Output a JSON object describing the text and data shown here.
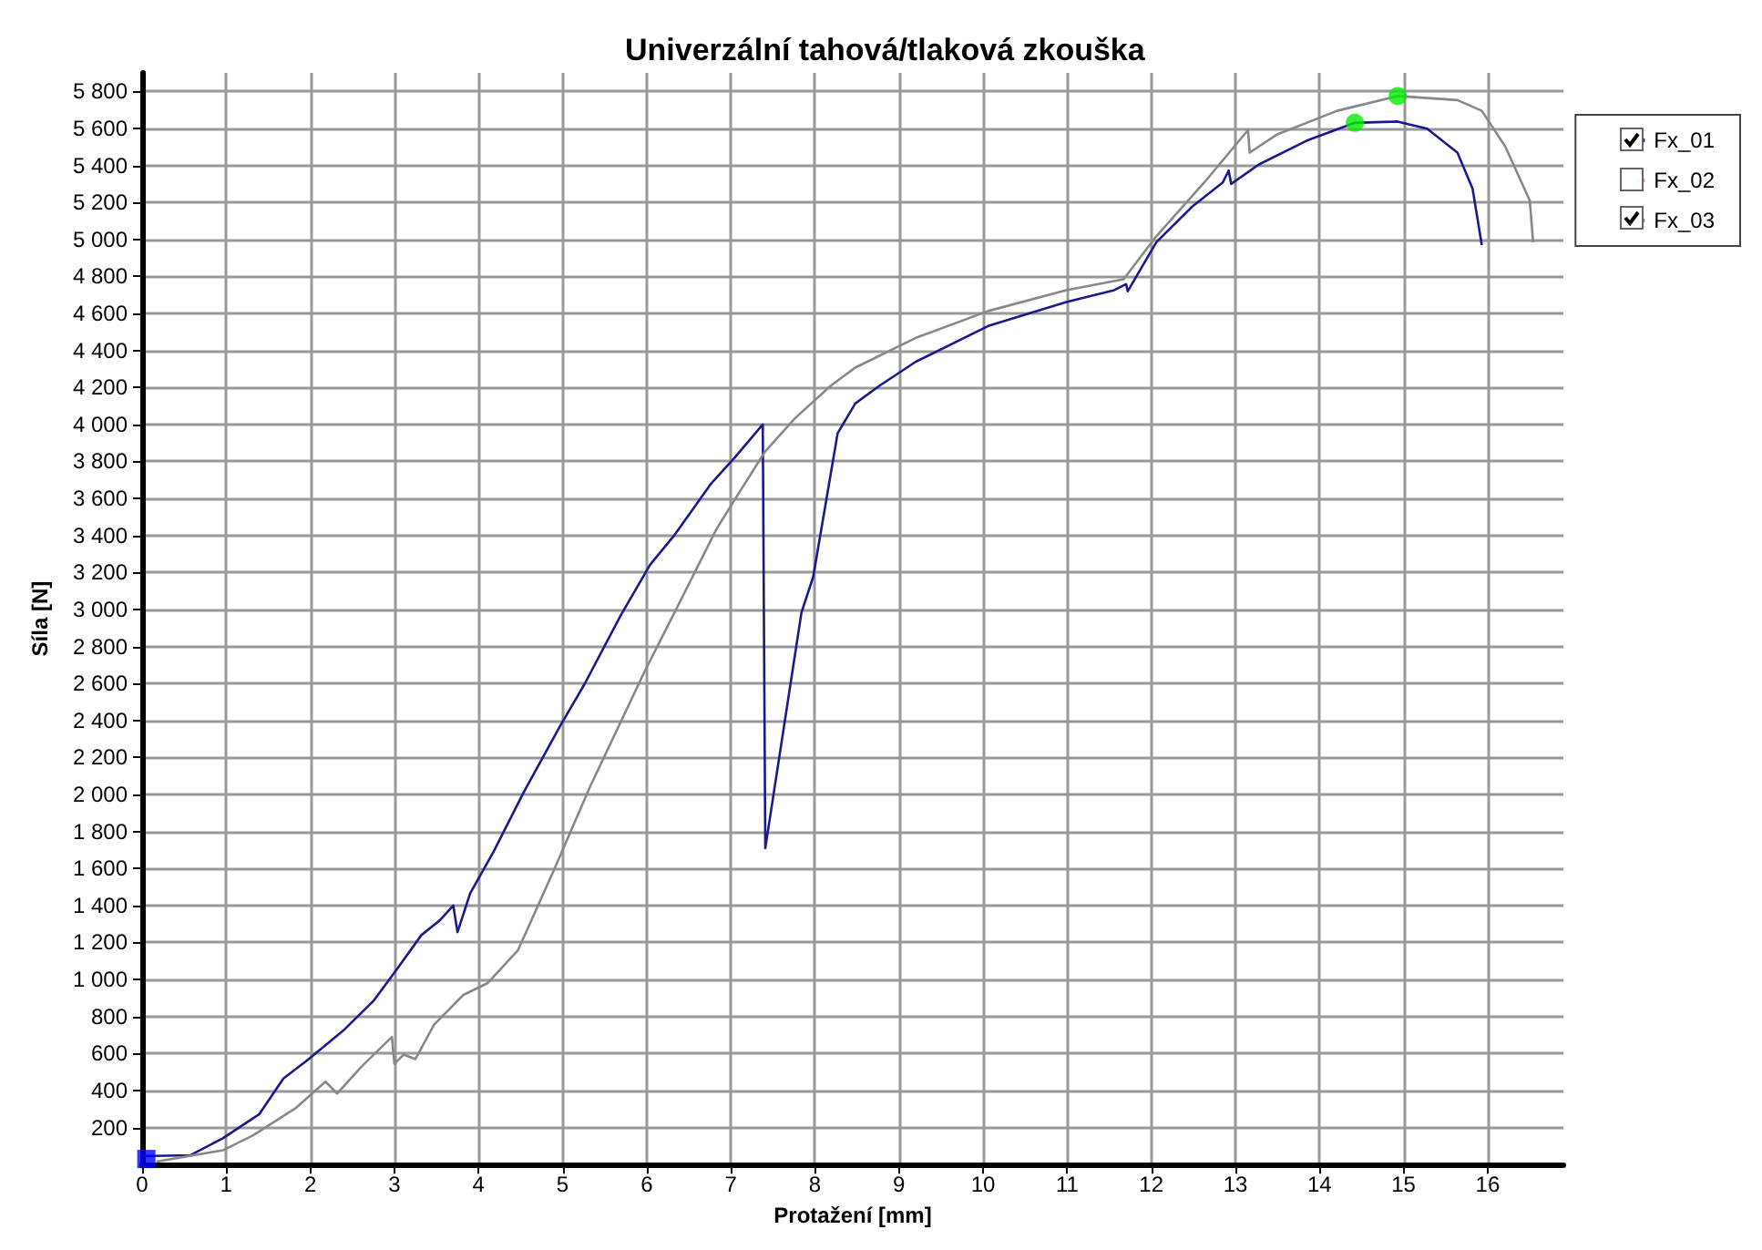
{
  "chart_data": {
    "type": "line",
    "title": "Univerzální tahová/tlaková zkouška",
    "xlabel": "Protažení [mm]",
    "ylabel": "Síla [N]",
    "xlim": [
      0,
      16.9
    ],
    "xticks": [
      0,
      1,
      2,
      3,
      4,
      5,
      6,
      7,
      8,
      9,
      10,
      11,
      12,
      13,
      14,
      15,
      16
    ],
    "ylim": [
      0,
      5900
    ],
    "yticks": [
      {
        "value": 200,
        "label": "200"
      },
      {
        "value": 400,
        "label": "400"
      },
      {
        "value": 600,
        "label": "600"
      },
      {
        "value": 800,
        "label": "800"
      },
      {
        "value": 1000,
        "label": "1 000"
      },
      {
        "value": 1200,
        "label": "1 200"
      },
      {
        "value": 1400,
        "label": "1 400"
      },
      {
        "value": 1600,
        "label": "1 600"
      },
      {
        "value": 1800,
        "label": "1 800"
      },
      {
        "value": 2000,
        "label": "2 000"
      },
      {
        "value": 2200,
        "label": "2 200"
      },
      {
        "value": 2400,
        "label": "2 400"
      },
      {
        "value": 2600,
        "label": "2 600"
      },
      {
        "value": 2800,
        "label": "2 800"
      },
      {
        "value": 3000,
        "label": "3 000"
      },
      {
        "value": 3200,
        "label": "3 200"
      },
      {
        "value": 3400,
        "label": "3 400"
      },
      {
        "value": 3600,
        "label": "3 600"
      },
      {
        "value": 3800,
        "label": "3 800"
      },
      {
        "value": 4000,
        "label": "4 000"
      },
      {
        "value": 4200,
        "label": "4 200"
      },
      {
        "value": 4400,
        "label": "4 400"
      },
      {
        "value": 4600,
        "label": "4 600"
      },
      {
        "value": 4800,
        "label": "4 800"
      },
      {
        "value": 5000,
        "label": "5 000"
      },
      {
        "value": 5200,
        "label": "5 200"
      },
      {
        "value": 5400,
        "label": "5 400"
      },
      {
        "value": 5600,
        "label": "5 600"
      },
      {
        "value": 5800,
        "label": "5 800"
      }
    ],
    "grid": true,
    "legend": "top right",
    "marker": "none",
    "line_style": "solid",
    "series": [
      {
        "name": "Fx_01",
        "color": "#1a1a8c",
        "x": [
          0,
          0.57,
          0.96,
          1.39,
          1.68,
          1.96,
          2.39,
          2.75,
          3.04,
          3.32,
          3.54,
          3.7,
          3.75,
          3.9,
          4.18,
          4.54,
          4.97,
          5.26,
          5.69,
          6.04,
          6.33,
          6.76,
          7.05,
          7.38,
          7.41,
          7.84,
          7.98,
          8.27,
          8.48,
          8.77,
          9.2,
          10.06,
          10.99,
          11.56,
          11.7,
          11.72,
          12.06,
          12.49,
          12.85,
          12.92,
          12.95,
          13.28,
          13.85,
          14.42,
          14.93,
          15.28,
          15.64,
          15.82,
          15.93
        ],
        "values": [
          45,
          50,
          142,
          271,
          465,
          562,
          723,
          884,
          1062,
          1240,
          1320,
          1400,
          1256,
          1465,
          1692,
          2014,
          2370,
          2596,
          2967,
          3242,
          3402,
          3677,
          3823,
          4000,
          1710,
          2983,
          3177,
          3952,
          4113,
          4210,
          4339,
          4532,
          4662,
          4726,
          4758,
          4720,
          4985,
          5179,
          5308,
          5372,
          5300,
          5405,
          5534,
          5630,
          5637,
          5598,
          5469,
          5275,
          4969
        ]
      },
      {
        "name": "Fx_02",
        "color": "#ff8899"
      },
      {
        "name": "Fx_03",
        "color": "#888888",
        "x": [
          0.17,
          0.96,
          1.32,
          1.82,
          2.18,
          2.32,
          2.61,
          2.97,
          3.0,
          3.11,
          3.25,
          3.47,
          3.82,
          4.11,
          4.47,
          4.9,
          5.33,
          5.97,
          6.33,
          6.83,
          7.05,
          7.41,
          7.76,
          8.19,
          8.48,
          9.2,
          10.06,
          10.99,
          11.67,
          12.06,
          12.63,
          13.15,
          13.17,
          13.49,
          14.21,
          14.93,
          15.64,
          15.93,
          16.21,
          16.5,
          16.54
        ],
        "values": [
          16,
          77,
          158,
          303,
          448,
          384,
          530,
          690,
          545,
          594,
          570,
          755,
          917,
          981,
          1159,
          1595,
          2046,
          2660,
          2983,
          3435,
          3596,
          3855,
          4032,
          4210,
          4307,
          4468,
          4613,
          4726,
          4785,
          5017,
          5308,
          5591,
          5469,
          5566,
          5695,
          5775,
          5753,
          5695,
          5501,
          5211,
          4985
        ]
      },
      {
        "type": "scatter",
        "color": "#00ee00",
        "marker": "circle",
        "x": [
          14.42,
          14.93
        ],
        "values": [
          5630,
          5775
        ]
      },
      {
        "type": "scatter",
        "color": "#0000ff",
        "marker": "square",
        "x": [
          0.05
        ],
        "values": [
          30
        ]
      }
    ]
  }
}
